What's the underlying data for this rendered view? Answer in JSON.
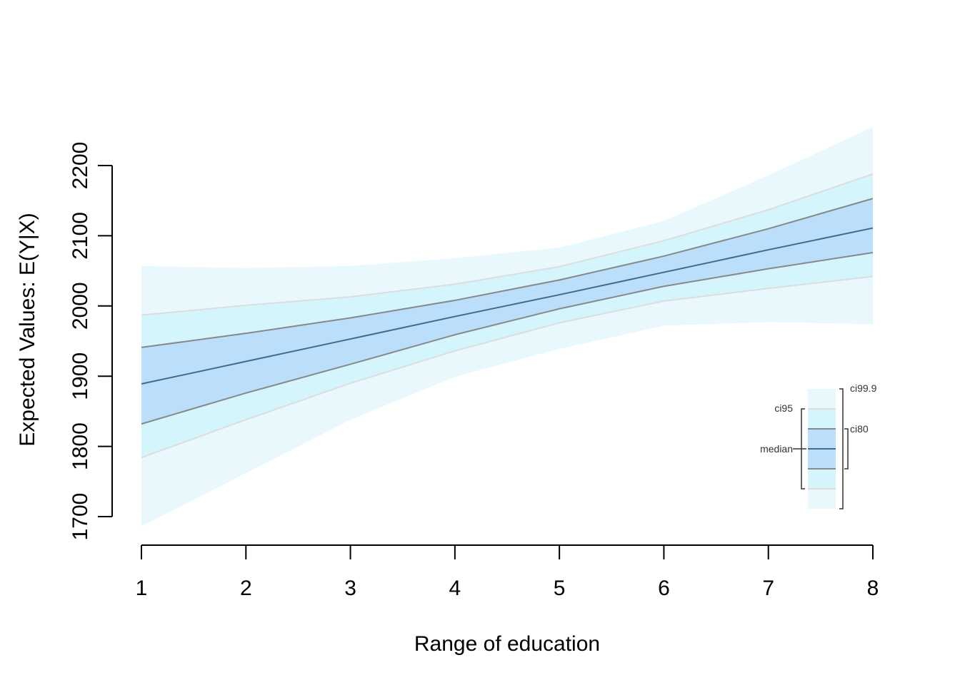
{
  "chart_data": {
    "type": "line",
    "xlabel": "Range of education",
    "ylabel": "Expected Values: E(Y|X)",
    "x": [
      1,
      2,
      3,
      4,
      5,
      6,
      7,
      8
    ],
    "x_ticks": [
      "1",
      "2",
      "3",
      "4",
      "5",
      "6",
      "7",
      "8"
    ],
    "y_ticks": [
      "1700",
      "1800",
      "1900",
      "2000",
      "2100",
      "2200"
    ],
    "xlim": [
      1,
      8
    ],
    "ylim": [
      1700,
      2200
    ],
    "grid": false,
    "legend_position": "bottom-right",
    "series": [
      {
        "name": "median",
        "values": [
          1889,
          1921,
          1953,
          1985,
          2016,
          2048,
          2080,
          2111
        ]
      },
      {
        "name": "ci80",
        "lower": [
          1832,
          1876,
          1917,
          1959,
          1996,
          2028,
          2053,
          2076
        ],
        "upper": [
          1941,
          1961,
          1983,
          2008,
          2037,
          2071,
          2110,
          2153
        ]
      },
      {
        "name": "ci95",
        "lower": [
          1784,
          1838,
          1890,
          1936,
          1976,
          2007,
          2025,
          2042
        ],
        "upper": [
          1987,
          2001,
          2013,
          2031,
          2056,
          2093,
          2137,
          2188
        ]
      },
      {
        "name": "ci99.9",
        "lower": [
          1686,
          1762,
          1838,
          1899,
          1939,
          1972,
          1977,
          1974
        ],
        "upper": [
          2057,
          2054,
          2057,
          2068,
          2083,
          2121,
          2186,
          2255
        ]
      }
    ],
    "legend": {
      "median": "median",
      "ci80": "ci80",
      "ci95": "ci95",
      "ci999": "ci99.9"
    },
    "colors": {
      "band_999": "#e9f8fd",
      "band_95": "#d4f5fc",
      "band_80": "#bbdffa",
      "line_95": "#dddddd",
      "line_80": "#888888",
      "line_median": "#3f6b8c",
      "axis": "#000000"
    }
  }
}
